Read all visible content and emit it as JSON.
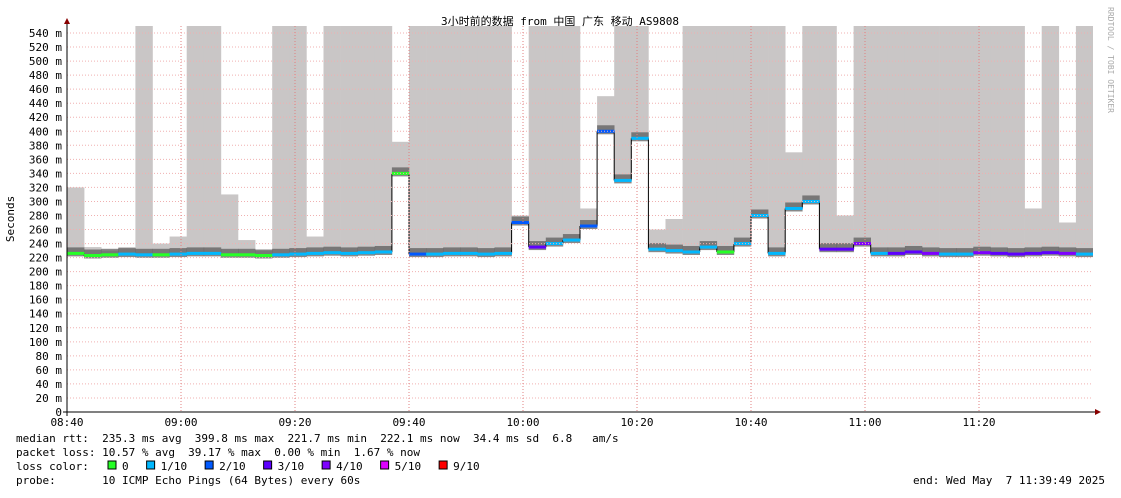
{
  "chart_data": {
    "type": "smokeping",
    "title": "3小时前的数据 from 中国 广东 移动 AS9808",
    "y_label": "Seconds",
    "side_text": "RRDTOOL / TOBI OETIKER",
    "xlim": [
      "08:40",
      "11:40"
    ],
    "xticks": [
      "08:40",
      "09:00",
      "09:20",
      "09:40",
      "10:00",
      "10:20",
      "10:40",
      "11:00",
      "11:20"
    ],
    "ylim": [
      0,
      0.55
    ],
    "yticks": [
      0,
      {
        "value": 0.02,
        "label": "20 m"
      },
      {
        "value": 0.04,
        "label": "40 m"
      },
      {
        "value": 0.06,
        "label": "60 m"
      },
      {
        "value": 0.08,
        "label": "80 m"
      },
      {
        "value": 0.1,
        "label": "100 m"
      },
      {
        "value": 0.12,
        "label": "120 m"
      },
      {
        "value": 0.14,
        "label": "140 m"
      },
      {
        "value": 0.16,
        "label": "160 m"
      },
      {
        "value": 0.18,
        "label": "180 m"
      },
      {
        "value": 0.2,
        "label": "200 m"
      },
      {
        "value": 0.22,
        "label": "220 m"
      },
      {
        "value": 0.24,
        "label": "240 m"
      },
      {
        "value": 0.26,
        "label": "260 m"
      },
      {
        "value": 0.28,
        "label": "280 m"
      },
      {
        "value": 0.3,
        "label": "300 m"
      },
      {
        "value": 0.32,
        "label": "320 m"
      },
      {
        "value": 0.34,
        "label": "340 m"
      },
      {
        "value": 0.36,
        "label": "360 m"
      },
      {
        "value": 0.38,
        "label": "380 m"
      },
      {
        "value": 0.4,
        "label": "400 m"
      },
      {
        "value": 0.42,
        "label": "420 m"
      },
      {
        "value": 0.44,
        "label": "440 m"
      },
      {
        "value": 0.46,
        "label": "460 m"
      },
      {
        "value": 0.48,
        "label": "480 m"
      },
      {
        "value": 0.5,
        "label": "500 m"
      },
      {
        "value": 0.52,
        "label": "520 m"
      },
      {
        "value": 0.54,
        "label": "540 m"
      }
    ],
    "grid": true,
    "step_minutes": 3,
    "x": [
      "08:40",
      "08:43",
      "08:46",
      "08:49",
      "08:52",
      "08:55",
      "08:58",
      "09:01",
      "09:04",
      "09:07",
      "09:10",
      "09:13",
      "09:16",
      "09:19",
      "09:22",
      "09:25",
      "09:28",
      "09:31",
      "09:34",
      "09:37",
      "09:40",
      "09:43",
      "09:46",
      "09:49",
      "09:52",
      "09:55",
      "09:58",
      "10:01",
      "10:04",
      "10:07",
      "10:10",
      "10:13",
      "10:16",
      "10:19",
      "10:22",
      "10:25",
      "10:28",
      "10:31",
      "10:34",
      "10:37",
      "10:40",
      "10:43",
      "10:46",
      "10:49",
      "10:52",
      "10:55",
      "10:58",
      "11:01",
      "11:04",
      "11:07",
      "11:10",
      "11:13",
      "11:16",
      "11:19",
      "11:22",
      "11:25",
      "11:28",
      "11:31",
      "11:34",
      "11:37"
    ],
    "median": [
      0.226,
      0.223,
      0.224,
      0.225,
      0.224,
      0.224,
      0.225,
      0.226,
      0.226,
      0.224,
      0.224,
      0.223,
      0.224,
      0.225,
      0.226,
      0.227,
      0.226,
      0.227,
      0.228,
      0.34,
      0.225,
      0.225,
      0.226,
      0.226,
      0.225,
      0.226,
      0.27,
      0.235,
      0.24,
      0.245,
      0.265,
      0.4,
      0.33,
      0.39,
      0.232,
      0.23,
      0.228,
      0.235,
      0.228,
      0.24,
      0.28,
      0.226,
      0.29,
      0.3,
      0.232,
      0.232,
      0.24,
      0.226,
      0.226,
      0.228,
      0.226,
      0.225,
      0.225,
      0.227,
      0.226,
      0.225,
      0.226,
      0.227,
      0.226,
      0.225
    ],
    "loss": [
      0,
      0,
      0,
      1,
      1,
      0,
      1,
      1,
      1,
      0,
      0,
      0,
      1,
      1,
      1,
      1,
      1,
      1,
      1,
      0,
      2,
      1,
      1,
      1,
      1,
      1,
      2,
      3,
      1,
      1,
      2,
      2,
      1,
      1,
      1,
      1,
      1,
      1,
      0,
      1,
      1,
      1,
      1,
      1,
      3,
      3,
      4,
      1,
      3,
      3,
      4,
      1,
      1,
      4,
      3,
      3,
      3,
      3,
      4,
      1
    ],
    "smoke_high": [
      0.32,
      0.235,
      0.23,
      0.235,
      0.55,
      0.24,
      0.25,
      0.55,
      0.55,
      0.31,
      0.245,
      0.23,
      0.55,
      0.55,
      0.25,
      0.55,
      0.55,
      0.55,
      0.55,
      0.385,
      0.55,
      0.55,
      0.55,
      0.55,
      0.55,
      0.55,
      0.28,
      0.55,
      0.55,
      0.55,
      0.29,
      0.45,
      0.55,
      0.55,
      0.26,
      0.275,
      0.55,
      0.55,
      0.55,
      0.55,
      0.55,
      0.55,
      0.37,
      0.55,
      0.55,
      0.28,
      0.55,
      0.55,
      0.55,
      0.55,
      0.55,
      0.55,
      0.55,
      0.55,
      0.55,
      0.55,
      0.29,
      0.55,
      0.27,
      0.55
    ],
    "loss_colors_label": "loss color:",
    "loss_colors": [
      {
        "value": 0,
        "label": "0",
        "color": "#26ff26"
      },
      {
        "value": 1,
        "label": "1/10",
        "color": "#00b8ff"
      },
      {
        "value": 2,
        "label": "2/10",
        "color": "#0059ff"
      },
      {
        "value": 3,
        "label": "3/10",
        "color": "#5e00ff"
      },
      {
        "value": 4,
        "label": "4/10",
        "color": "#7e00ff"
      },
      {
        "value": 5,
        "label": "5/10",
        "color": "#dd00ff"
      },
      {
        "value": 9,
        "label": "9/10",
        "color": "#ff0000"
      }
    ],
    "stats": [
      "median rtt:  235.3 ms avg  399.8 ms max  221.7 ms min  222.1 ms now  34.4 ms sd  6.8   am/s",
      "packet loss: 10.57 % avg  39.17 % max  0.00 % min  1.67 % now",
      "probe:       10 ICMP Echo Pings (64 Bytes) every 60s"
    ],
    "end_text": "end: Wed May  7 11:39:49 2025"
  }
}
